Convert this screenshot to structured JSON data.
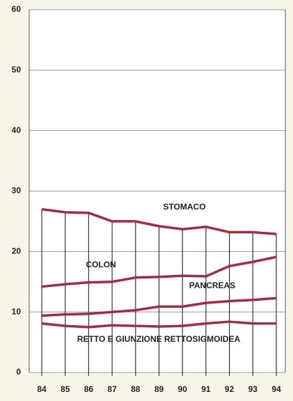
{
  "chart_data": {
    "type": "line",
    "categories": [
      "84",
      "85",
      "86",
      "87",
      "88",
      "89",
      "90",
      "91",
      "92",
      "93",
      "94"
    ],
    "series": [
      {
        "name": "STOMACO",
        "color": "#a8283f",
        "values": [
          27.0,
          26.5,
          26.4,
          25.0,
          25.0,
          24.2,
          23.7,
          24.1,
          23.2,
          23.2,
          22.9
        ]
      },
      {
        "name": "COLON",
        "color": "#a8283f",
        "values": [
          14.2,
          14.6,
          14.9,
          15.0,
          15.7,
          15.8,
          16.0,
          15.9,
          17.6,
          18.3,
          19.1
        ]
      },
      {
        "name": "PANCREAS",
        "color": "#a8283f",
        "values": [
          9.4,
          9.6,
          9.7,
          10.0,
          10.3,
          10.9,
          10.9,
          11.5,
          11.8,
          12.0,
          12.3
        ]
      },
      {
        "name": "RETTO E GIUNZIONE RETTOSIGMOIDEA",
        "color": "#a8283f",
        "values": [
          8.1,
          7.7,
          7.5,
          7.8,
          7.7,
          7.6,
          7.7,
          8.1,
          8.4,
          8.1,
          8.1
        ]
      }
    ],
    "ylim": [
      0,
      60
    ],
    "yticks": [
      0,
      10,
      20,
      30,
      40,
      50,
      60
    ],
    "grid": true
  }
}
